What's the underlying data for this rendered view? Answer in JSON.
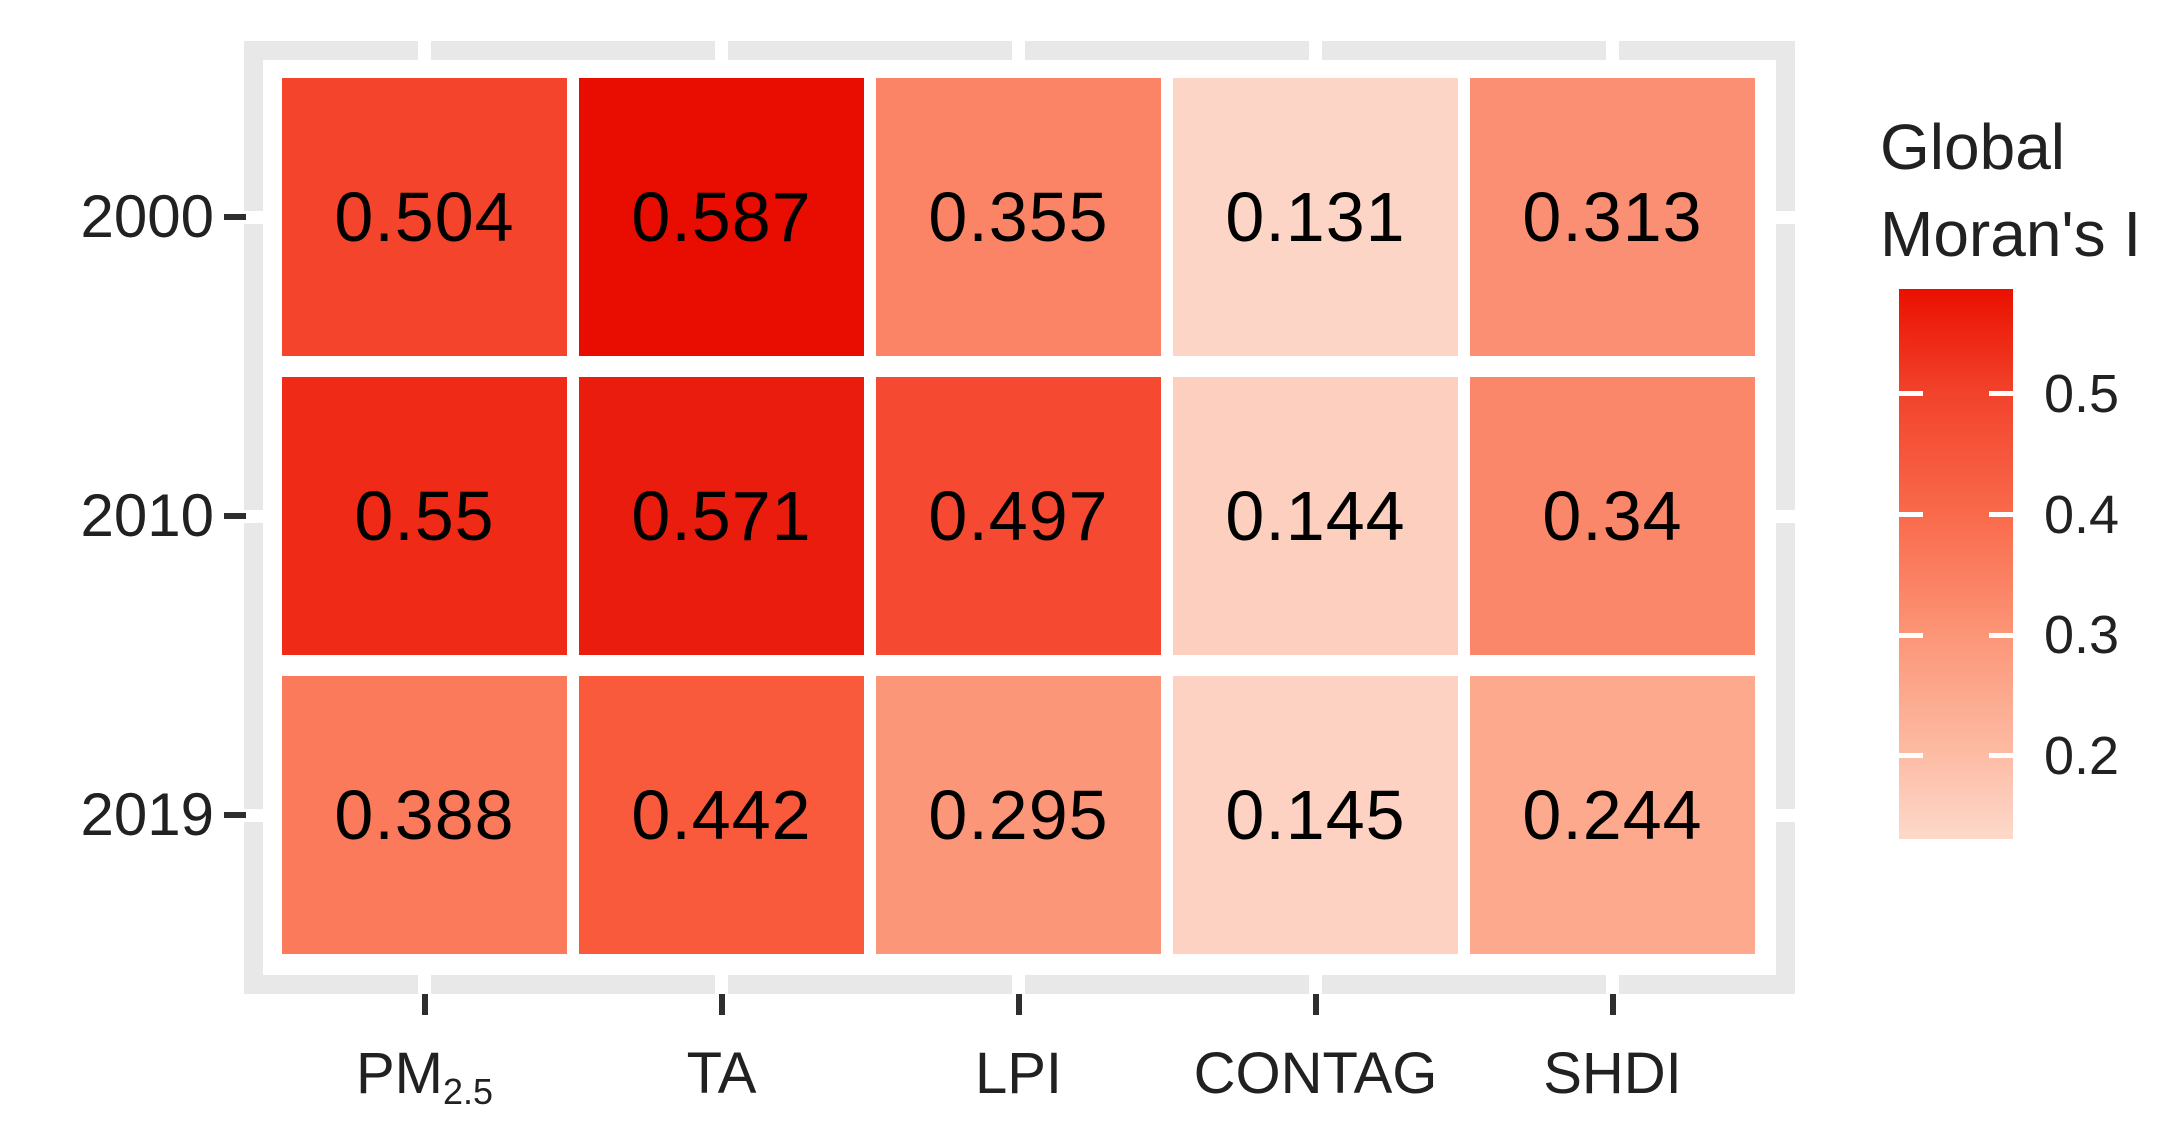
{
  "figure": {
    "background": "#FFFFFF",
    "frame_color": "#E8E8E8",
    "tick_color": "#2E2E2E",
    "text_color": "#212121",
    "value_text_color": "#000000"
  },
  "legend": {
    "title_line1": "Global",
    "title_line2": "Moran's I",
    "ticks": [
      {
        "label": "0.5",
        "value": 0.5
      },
      {
        "label": "0.4",
        "value": 0.4
      },
      {
        "label": "0.3",
        "value": 0.3
      },
      {
        "label": "0.2",
        "value": 0.2
      }
    ],
    "gradient_stops": [
      {
        "value": 0.587,
        "color": "#EA1000"
      },
      {
        "value": 0.5,
        "color": "#F2432C"
      },
      {
        "value": 0.4,
        "color": "#F96A4B"
      },
      {
        "value": 0.3,
        "color": "#FC9577"
      },
      {
        "value": 0.2,
        "color": "#FDBCA5"
      },
      {
        "value": 0.131,
        "color": "#FDD9CB"
      }
    ]
  },
  "chart_data": {
    "type": "heatmap",
    "title": "",
    "legend_title": "Global Moran's I",
    "legend_position": "right",
    "grid": "off",
    "value_range": [
      0.131,
      0.587
    ],
    "x_categories": [
      "PM2.5",
      "TA",
      "LPI",
      "CONTAG",
      "SHDI"
    ],
    "x_category_display": [
      {
        "main": "PM",
        "sub": "2.5"
      },
      "TA",
      "LPI",
      "CONTAG",
      "SHDI"
    ],
    "y_categories": [
      "2000",
      "2010",
      "2019"
    ],
    "series": [
      {
        "name": "2000",
        "values": [
          0.504,
          0.587,
          0.355,
          0.131,
          0.313
        ],
        "display": [
          "0.504",
          "0.587",
          "0.355",
          "0.131",
          "0.313"
        ],
        "cell_colors": [
          "#F4452C",
          "#E80D00",
          "#FB8467",
          "#FDD5C7",
          "#FB8F73"
        ]
      },
      {
        "name": "2010",
        "values": [
          0.55,
          0.571,
          0.497,
          0.144,
          0.34
        ],
        "display": [
          "0.55",
          "0.571",
          "0.497",
          "0.144",
          "0.34"
        ],
        "cell_colors": [
          "#EF2A16",
          "#EA1C0D",
          "#F54931",
          "#FCCFBF",
          "#FA8769"
        ]
      },
      {
        "name": "2019",
        "values": [
          0.388,
          0.442,
          0.295,
          0.145,
          0.244
        ],
        "display": [
          "0.388",
          "0.442",
          "0.295",
          "0.145",
          "0.244"
        ],
        "cell_colors": [
          "#FB7A5B",
          "#F95A3C",
          "#FC9679",
          "#FDD2C2",
          "#FCA98D"
        ]
      }
    ]
  }
}
